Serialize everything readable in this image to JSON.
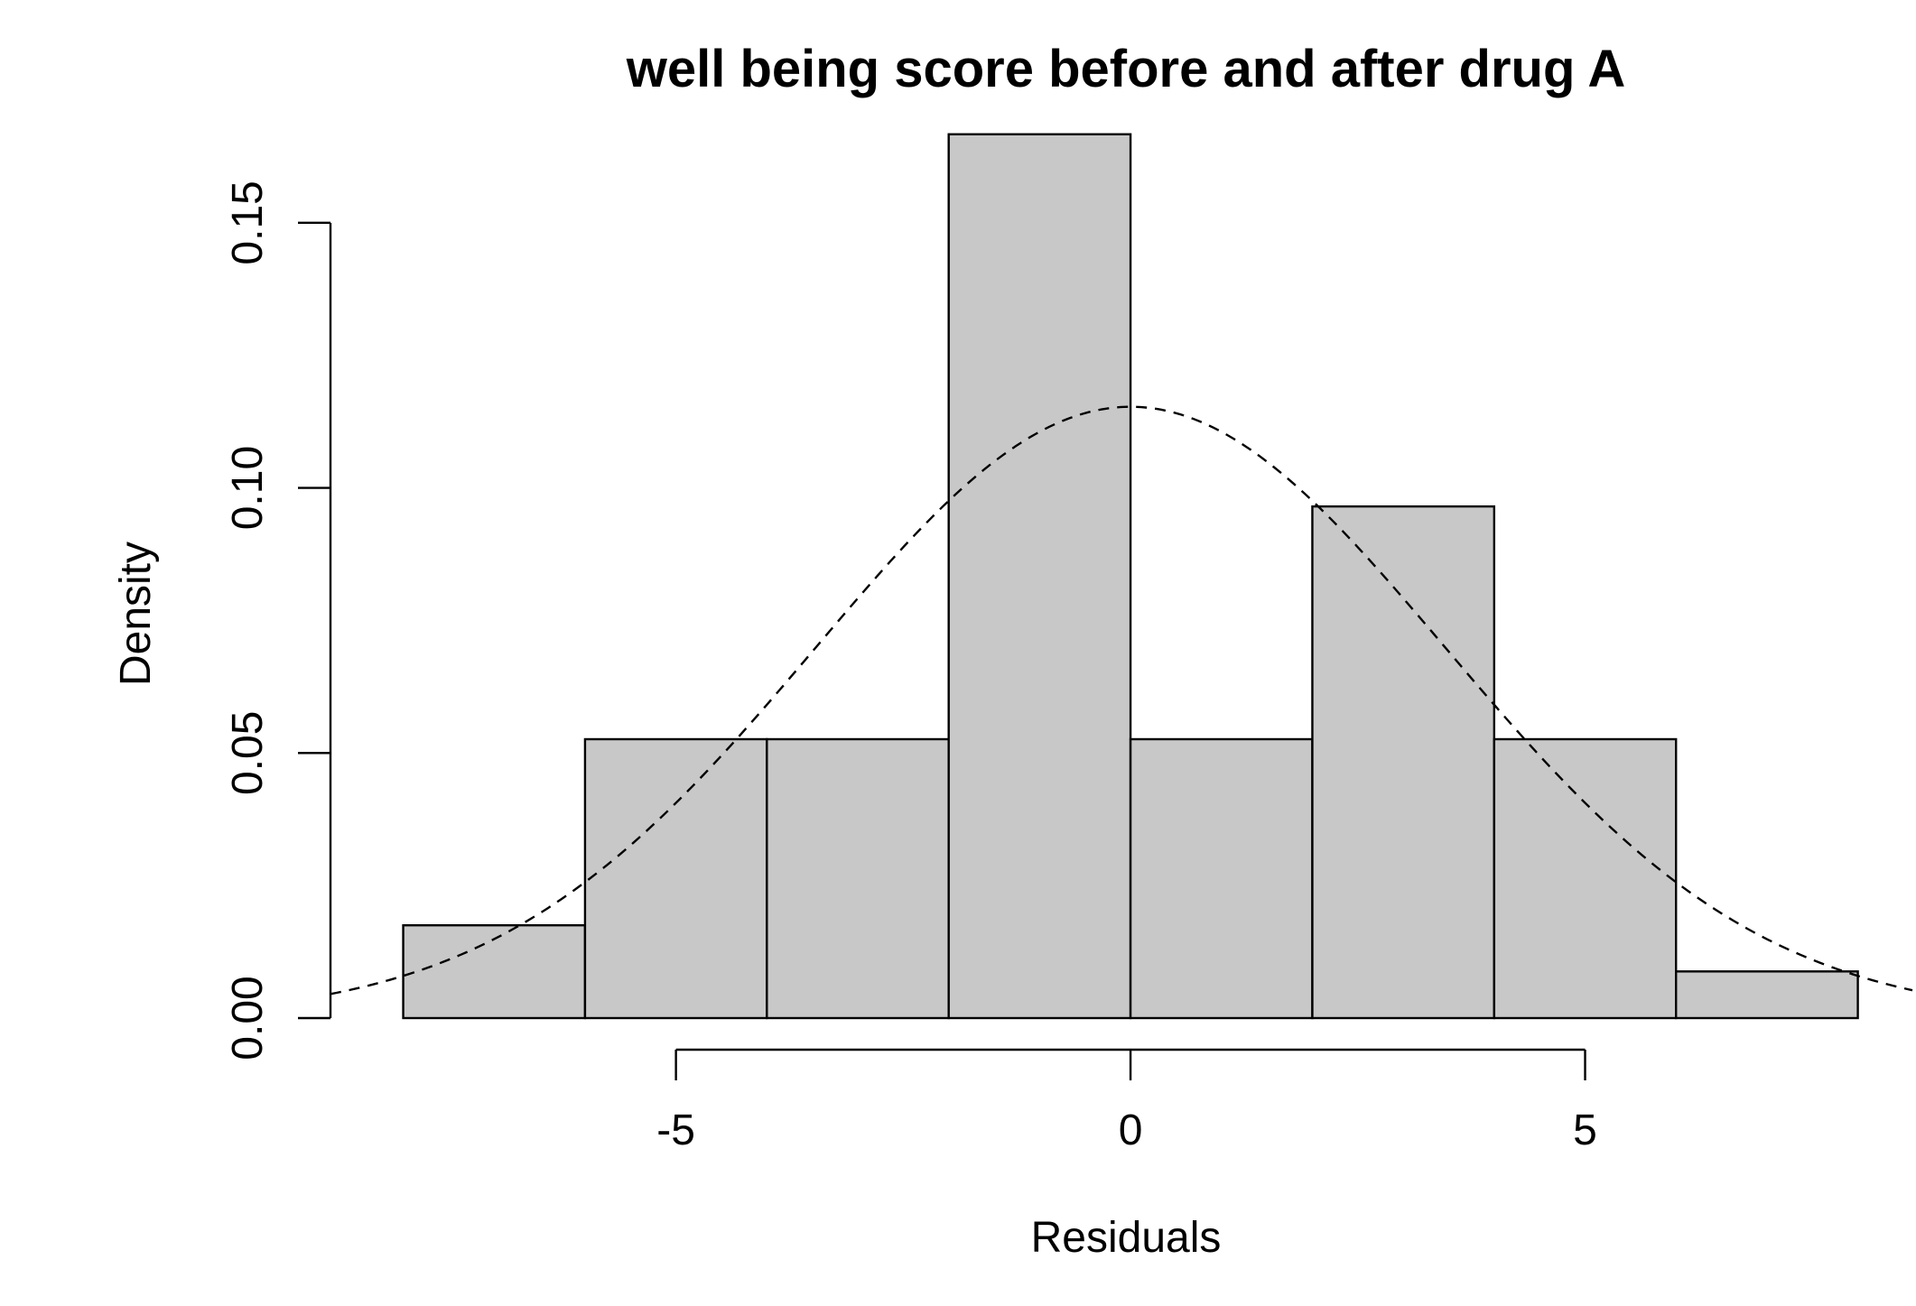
{
  "chart_data": {
    "type": "bar",
    "subtype": "histogram",
    "title": "well being score before and after drug A",
    "xlabel": "Residuals",
    "ylabel": "Density",
    "bins": [
      {
        "x0": -8,
        "x1": -6,
        "density": 0.0175
      },
      {
        "x0": -6,
        "x1": -4,
        "density": 0.0526
      },
      {
        "x0": -4,
        "x1": -2,
        "density": 0.0526
      },
      {
        "x0": -2,
        "x1": 0,
        "density": 0.1667
      },
      {
        "x0": 0,
        "x1": 2,
        "density": 0.0526
      },
      {
        "x0": 2,
        "x1": 4,
        "density": 0.0965
      },
      {
        "x0": 4,
        "x1": 6,
        "density": 0.0526
      },
      {
        "x0": 6,
        "x1": 8,
        "density": 0.0088
      }
    ],
    "overlay": {
      "type": "normal-density-curve",
      "style": "dashed",
      "mean": 0,
      "sd": 3.46
    },
    "xlim": [
      -8.8,
      8.6
    ],
    "ylim": [
      0,
      0.175
    ],
    "xticks": [
      -5,
      0,
      5
    ],
    "xtick_labels": [
      "-5",
      "0",
      "5"
    ],
    "yticks": [
      0,
      0.05,
      0.1,
      0.15
    ],
    "ytick_labels": [
      "0.00",
      "0.05",
      "0.10",
      "0.15"
    ],
    "bar_fill": "#c8c8c8",
    "bar_stroke": "#000000",
    "grid": false,
    "legend": "none"
  }
}
